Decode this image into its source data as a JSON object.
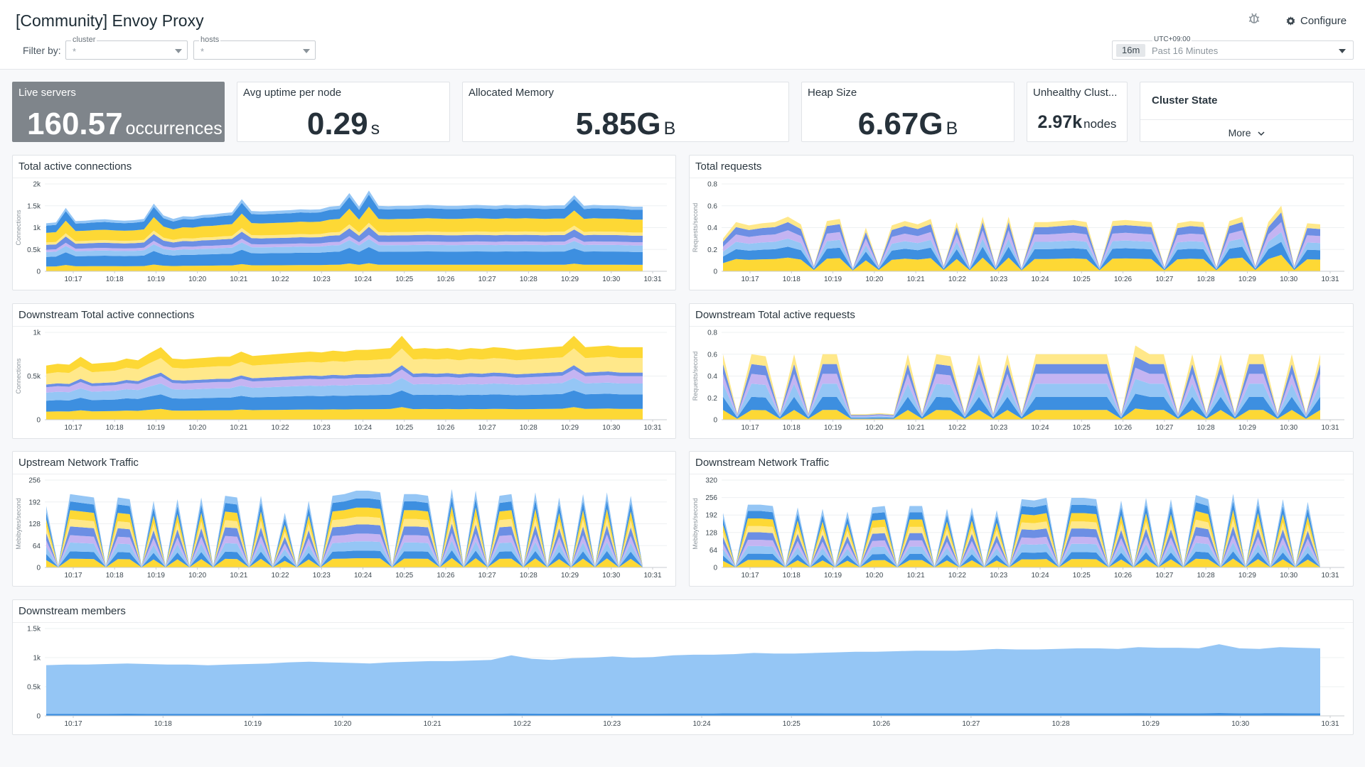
{
  "header": {
    "title": "[Community] Envoy Proxy",
    "configure_label": "Configure",
    "filter_label": "Filter by:",
    "filters": [
      {
        "label": "cluster",
        "value": "*"
      },
      {
        "label": "hosts",
        "value": "*"
      }
    ],
    "time": {
      "timezone": "UTC+09:00",
      "badge": "16m",
      "range": "Past 16 Minutes"
    }
  },
  "query_values": {
    "live_servers": {
      "title": "Live servers",
      "value": "160.57",
      "unit": "occurrences"
    },
    "avg_uptime": {
      "title": "Avg uptime per node",
      "value": "0.29",
      "unit": "s"
    },
    "allocated_memory": {
      "title": "Allocated Memory",
      "value": "5.85G",
      "unit": "B"
    },
    "heap_size": {
      "title": "Heap Size",
      "value": "6.67G",
      "unit": "B"
    },
    "unhealthy": {
      "title": "Unhealthy Clust...",
      "value": "2.97k",
      "unit": "nodes"
    }
  },
  "cluster_state": {
    "title": "Cluster State",
    "more_label": "More"
  },
  "palette": [
    "#fdd835",
    "#3d8fe0",
    "#95c6f5",
    "#c4b4f2",
    "#6c8fe4",
    "#ffe88a"
  ],
  "charts": {
    "total_active_connections": {
      "title": "Total active connections",
      "ylabel": "Connections",
      "type": "stacked-area",
      "yticks": [
        {
          "v": 0,
          "t": "0"
        },
        {
          "v": 500,
          "t": "0.5k"
        },
        {
          "v": 1000,
          "t": "1k"
        },
        {
          "v": 1500,
          "t": "1.5k"
        },
        {
          "v": 2000,
          "t": "2k"
        }
      ],
      "ymax": 2000,
      "xticks": [
        "10:17",
        "10:18",
        "10:19",
        "10:20",
        "10:21",
        "10:22",
        "10:23",
        "10:24",
        "10:25",
        "10:26",
        "10:27",
        "10:28",
        "10:29",
        "10:30",
        "10:31"
      ],
      "total": [
        1100,
        1120,
        1450,
        1150,
        1160,
        1180,
        1190,
        1170,
        1160,
        1170,
        1200,
        1550,
        1280,
        1200,
        1260,
        1250,
        1290,
        1300,
        1330,
        1350,
        1650,
        1380,
        1370,
        1380,
        1390,
        1400,
        1420,
        1410,
        1420,
        1480,
        1500,
        1790,
        1480,
        1850,
        1500,
        1490,
        1500,
        1500,
        1510,
        1520,
        1510,
        1500,
        1500,
        1510,
        1520,
        1510,
        1500,
        1520,
        1510,
        1520,
        1510,
        1500,
        1510,
        1510,
        1740,
        1500,
        1520,
        1510,
        1510,
        1500,
        1480,
        1480
      ],
      "fractions": [
        0.1,
        0.2,
        0.1,
        0.05,
        0.1,
        0.05,
        0.2,
        0.15,
        0.05
      ]
    },
    "total_requests": {
      "title": "Total requests",
      "ylabel": "Requests/second",
      "type": "spiky",
      "yticks": [
        {
          "v": 0,
          "t": "0"
        },
        {
          "v": 0.2,
          "t": "0.2"
        },
        {
          "v": 0.4,
          "t": "0.4"
        },
        {
          "v": 0.6,
          "t": "0.6"
        },
        {
          "v": 0.8,
          "t": "0.8"
        }
      ],
      "ymax": 0.8,
      "xticks": [
        "10:17",
        "10:18",
        "10:19",
        "10:20",
        "10:21",
        "10:22",
        "10:23",
        "10:24",
        "10:25",
        "10:26",
        "10:27",
        "10:28",
        "10:29",
        "10:30",
        "10:31"
      ],
      "total": [
        0.3,
        0.45,
        0.42,
        0.44,
        0.45,
        0.5,
        0.43,
        0.05,
        0.46,
        0.48,
        0.03,
        0.4,
        0.05,
        0.42,
        0.46,
        0.43,
        0.48,
        0.05,
        0.45,
        0.04,
        0.5,
        0.05,
        0.5,
        0.03,
        0.45,
        0.45,
        0.46,
        0.47,
        0.45,
        0.04,
        0.46,
        0.47,
        0.46,
        0.45,
        0.04,
        0.44,
        0.46,
        0.45,
        0.04,
        0.46,
        0.5,
        0.05,
        0.45,
        0.6,
        0.05,
        0.44,
        0.43
      ],
      "fractions": [
        0.25,
        0.2,
        0.15,
        0.15,
        0.15,
        0.1
      ]
    },
    "downstream_active_connections": {
      "title": "Downstream Total active connections",
      "ylabel": "Connections",
      "type": "stacked-area",
      "yticks": [
        {
          "v": 0,
          "t": "0"
        },
        {
          "v": 500,
          "t": "0.5k"
        },
        {
          "v": 1000,
          "t": "1k"
        }
      ],
      "ymax": 1000,
      "xticks": [
        "10:17",
        "10:18",
        "10:19",
        "10:20",
        "10:21",
        "10:22",
        "10:23",
        "10:24",
        "10:25",
        "10:26",
        "10:27",
        "10:28",
        "10:29",
        "10:30",
        "10:31"
      ],
      "total": [
        620,
        640,
        630,
        720,
        640,
        650,
        660,
        700,
        680,
        760,
        830,
        700,
        690,
        700,
        710,
        720,
        720,
        780,
        730,
        740,
        750,
        760,
        770,
        780,
        770,
        790,
        780,
        800,
        800,
        810,
        820,
        960,
        810,
        820,
        810,
        820,
        800,
        820,
        810,
        830,
        820,
        800,
        810,
        820,
        830,
        840,
        960,
        830,
        840,
        850,
        830,
        830,
        830
      ],
      "fractions": [
        0.15,
        0.2,
        0.15,
        0.1,
        0.05,
        0.2,
        0.15
      ]
    },
    "downstream_active_requests": {
      "title": "Downstream Total active requests",
      "ylabel": "Requests/second",
      "type": "spiky",
      "yticks": [
        {
          "v": 0,
          "t": "0"
        },
        {
          "v": 0.2,
          "t": "0.2"
        },
        {
          "v": 0.4,
          "t": "0.4"
        },
        {
          "v": 0.6,
          "t": "0.6"
        },
        {
          "v": 0.8,
          "t": "0.8"
        }
      ],
      "ymax": 0.8,
      "xticks": [
        "10:17",
        "10:18",
        "10:19",
        "10:20",
        "10:21",
        "10:22",
        "10:23",
        "10:24",
        "10:25",
        "10:26",
        "10:27",
        "10:28",
        "10:29",
        "10:30",
        "10:31"
      ],
      "total": [
        0.6,
        0.06,
        0.6,
        0.58,
        0.06,
        0.6,
        0.06,
        0.6,
        0.6,
        0.05,
        0.05,
        0.06,
        0.05,
        0.6,
        0.06,
        0.6,
        0.58,
        0.06,
        0.6,
        0.06,
        0.6,
        0.06,
        0.6,
        0.6,
        0.6,
        0.6,
        0.6,
        0.6,
        0.05,
        0.68,
        0.6,
        0.6,
        0.06,
        0.6,
        0.06,
        0.6,
        0.06,
        0.6,
        0.6,
        0.06,
        0.6,
        0.06,
        0.6
      ],
      "fractions": [
        0.15,
        0.2,
        0.2,
        0.15,
        0.15,
        0.15
      ]
    },
    "upstream_network_traffic": {
      "title": "Upstream Network Traffic",
      "ylabel": "Mebibytes/second",
      "type": "spiky",
      "yticks": [
        {
          "v": 0,
          "t": "0"
        },
        {
          "v": 64,
          "t": "64"
        },
        {
          "v": 128,
          "t": "128"
        },
        {
          "v": 192,
          "t": "192"
        },
        {
          "v": 256,
          "t": "256"
        }
      ],
      "ymax": 256,
      "xticks": [
        "10:17",
        "10:18",
        "10:19",
        "10:20",
        "10:21",
        "10:22",
        "10:23",
        "10:24",
        "10:25",
        "10:26",
        "10:27",
        "10:28",
        "10:29",
        "10:30",
        "10:31"
      ],
      "total": [
        180,
        5,
        215,
        210,
        205,
        5,
        205,
        200,
        5,
        195,
        5,
        200,
        5,
        205,
        5,
        210,
        205,
        5,
        210,
        5,
        160,
        5,
        195,
        5,
        210,
        215,
        225,
        225,
        220,
        5,
        215,
        215,
        210,
        5,
        230,
        5,
        225,
        5,
        210,
        215,
        5,
        220,
        5,
        205,
        5,
        215,
        5,
        220,
        5,
        210,
        5
      ],
      "fractions": [
        0.12,
        0.1,
        0.12,
        0.1,
        0.12,
        0.1,
        0.12,
        0.12,
        0.1
      ]
    },
    "downstream_network_traffic": {
      "title": "Downstream Network Traffic",
      "ylabel": "Mebibytes/second",
      "type": "spiky",
      "yticks": [
        {
          "v": 0,
          "t": "0"
        },
        {
          "v": 64,
          "t": "64"
        },
        {
          "v": 128,
          "t": "128"
        },
        {
          "v": 192,
          "t": "192"
        },
        {
          "v": 256,
          "t": "256"
        },
        {
          "v": 320,
          "t": "320"
        }
      ],
      "ymax": 320,
      "xticks": [
        "10:17",
        "10:18",
        "10:19",
        "10:20",
        "10:21",
        "10:22",
        "10:23",
        "10:24",
        "10:25",
        "10:26",
        "10:27",
        "10:28",
        "10:29",
        "10:30",
        "10:31"
      ],
      "total": [
        200,
        5,
        230,
        230,
        225,
        5,
        220,
        5,
        215,
        5,
        205,
        5,
        220,
        225,
        5,
        225,
        225,
        5,
        215,
        5,
        220,
        5,
        210,
        5,
        250,
        245,
        255,
        5,
        255,
        255,
        250,
        5,
        245,
        5,
        255,
        5,
        250,
        5,
        265,
        250,
        5,
        270,
        5,
        255,
        5,
        250,
        5,
        240,
        5
      ],
      "fractions": [
        0.12,
        0.1,
        0.12,
        0.1,
        0.12,
        0.1,
        0.12,
        0.12,
        0.1
      ]
    },
    "downstream_members": {
      "title": "Downstream members",
      "type": "stacked-area",
      "yticks": [
        {
          "v": 0,
          "t": "0"
        },
        {
          "v": 500,
          "t": "0.5k"
        },
        {
          "v": 1000,
          "t": "1k"
        },
        {
          "v": 1500,
          "t": "1.5k"
        }
      ],
      "ymax": 1500,
      "xticks": [
        "10:17",
        "10:18",
        "10:19",
        "10:20",
        "10:21",
        "10:22",
        "10:23",
        "10:24",
        "10:25",
        "10:26",
        "10:27",
        "10:28",
        "10:29",
        "10:30",
        "10:31"
      ],
      "total": [
        870,
        880,
        880,
        890,
        900,
        890,
        880,
        880,
        870,
        880,
        890,
        900,
        920,
        930,
        920,
        910,
        900,
        920,
        930,
        940,
        940,
        950,
        960,
        1040,
        980,
        960,
        990,
        1000,
        1020,
        1000,
        1010,
        1040,
        1050,
        1050,
        1060,
        1080,
        1070,
        1070,
        1080,
        1090,
        1100,
        1100,
        1110,
        1120,
        1120,
        1120,
        1130,
        1150,
        1140,
        1140,
        1150,
        1160,
        1160,
        1150,
        1180,
        1170,
        1170,
        1160,
        1230,
        1160,
        1150,
        1180,
        1170,
        1160
      ],
      "fractions": [
        0.04,
        0.96
      ]
    }
  }
}
